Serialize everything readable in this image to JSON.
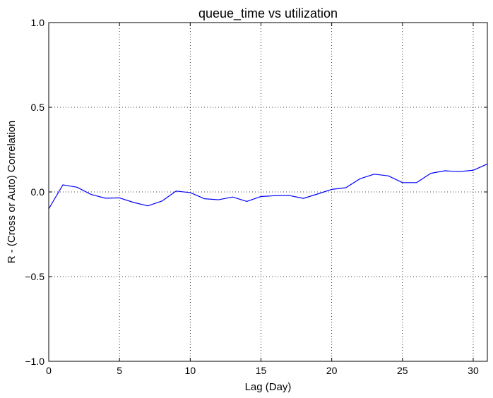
{
  "chart_data": {
    "type": "line",
    "title": "queue_time vs utilization",
    "xlabel": "Lag (Day)",
    "ylabel": "R - (Cross or Auto) Correlation",
    "xlim": [
      0,
      31
    ],
    "ylim": [
      -1.0,
      1.0
    ],
    "x_ticks": [
      0,
      5,
      10,
      15,
      20,
      25,
      30
    ],
    "x_tick_labels": [
      "0",
      "5",
      "10",
      "15",
      "20",
      "25",
      "30"
    ],
    "y_ticks": [
      -1.0,
      -0.5,
      0.0,
      0.5,
      1.0
    ],
    "y_tick_labels": [
      "−1.0",
      "−0.5",
      "0.0",
      "0.5",
      "1.0"
    ],
    "grid": true,
    "grid_style": "dotted",
    "legend": "none",
    "series": [
      {
        "color": "#0000ff",
        "x": [
          0,
          1,
          2,
          3,
          4,
          5,
          6,
          7,
          8,
          9,
          10,
          11,
          12,
          13,
          14,
          15,
          16,
          17,
          18,
          19,
          20,
          21,
          22,
          23,
          24,
          25,
          26,
          27,
          28,
          29,
          30,
          31
        ],
        "y": [
          -0.1,
          0.042,
          0.028,
          -0.015,
          -0.037,
          -0.035,
          -0.062,
          -0.082,
          -0.054,
          0.005,
          -0.004,
          -0.04,
          -0.046,
          -0.03,
          -0.056,
          -0.027,
          -0.022,
          -0.021,
          -0.038,
          -0.012,
          0.015,
          0.025,
          0.078,
          0.105,
          0.095,
          0.055,
          0.055,
          0.11,
          0.125,
          0.12,
          0.128,
          0.165
        ]
      }
    ]
  }
}
